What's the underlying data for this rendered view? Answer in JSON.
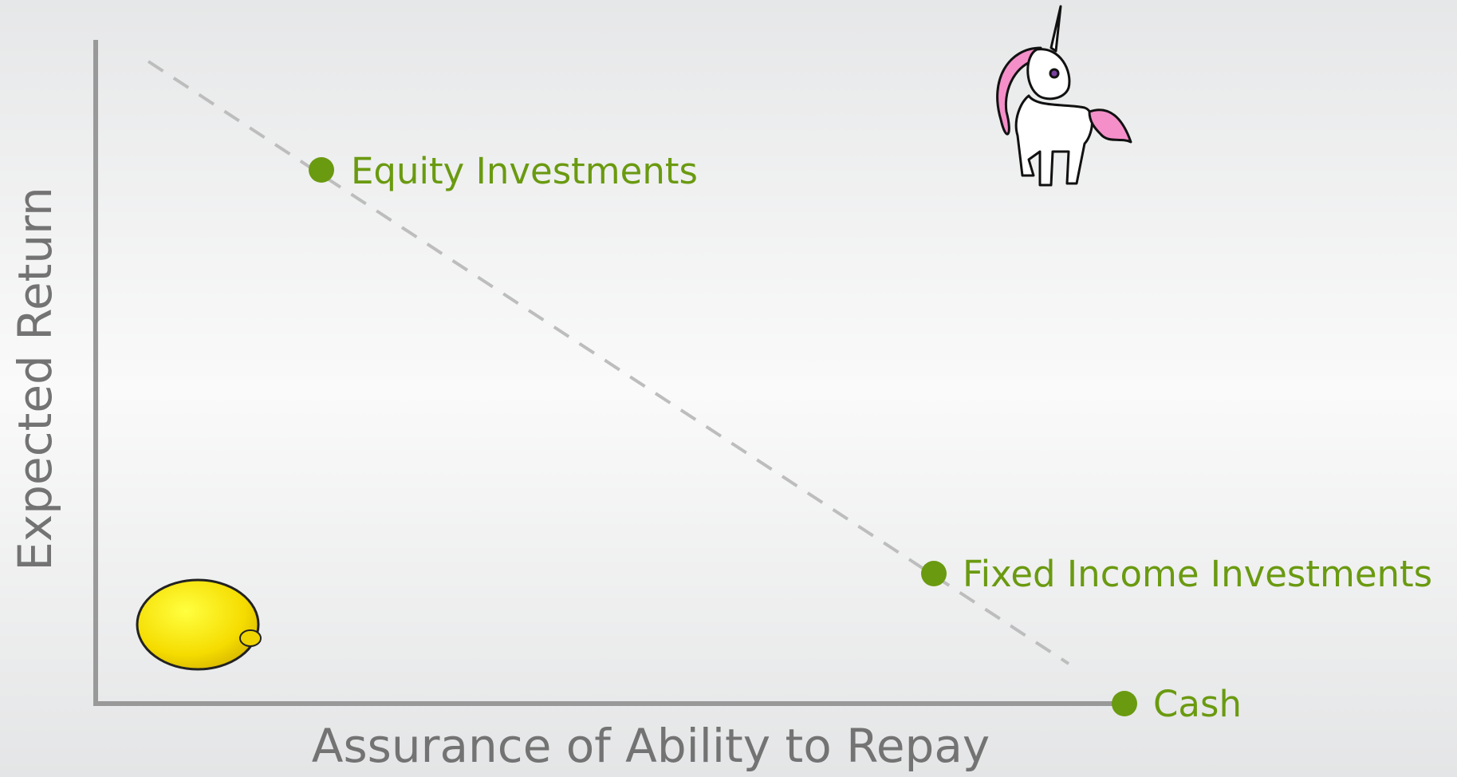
{
  "axes": {
    "y_label": "Expected Return",
    "x_label": "Assurance of Ability to Repay"
  },
  "nodes": [
    {
      "label": "Equity Investments"
    },
    {
      "label": "Fixed Income Investments"
    },
    {
      "label": "Cash"
    }
  ]
}
